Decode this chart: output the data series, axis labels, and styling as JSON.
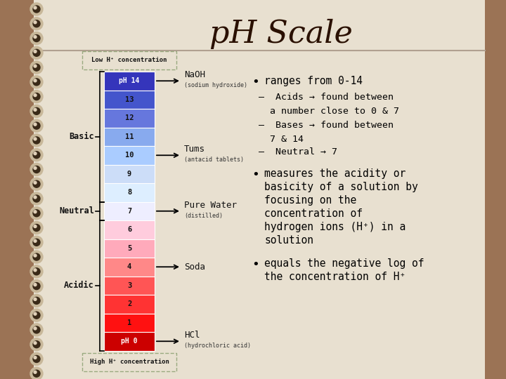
{
  "title": "pH Scale",
  "bg_color": "#e8e0d0",
  "spiral_bg": "#9b7355",
  "title_color": "#2a1000",
  "ph_levels": [
    14,
    13,
    12,
    11,
    10,
    9,
    8,
    7,
    6,
    5,
    4,
    3,
    2,
    1,
    0
  ],
  "ph_colors": [
    "#3535bb",
    "#4455cc",
    "#6677dd",
    "#88aaee",
    "#aaccff",
    "#ccddf8",
    "#ddeeff",
    "#eeeeff",
    "#ffccdd",
    "#ffaabb",
    "#ff8888",
    "#ff5555",
    "#ff3333",
    "#ff1111",
    "#cc0000"
  ],
  "annotations": [
    {
      "ph": 14,
      "label": "NaOH",
      "sublabel": "(sodium hydroxide)"
    },
    {
      "ph": 10,
      "label": "Tums",
      "sublabel": "(antacid tablets)"
    },
    {
      "ph": 7,
      "label": "Pure Water",
      "sublabel": "(distilled)"
    },
    {
      "ph": 4,
      "label": "Soda",
      "sublabel": ""
    },
    {
      "ph": 0,
      "label": "HCl",
      "sublabel": "(hydrochloric acid)"
    }
  ],
  "top_label": "Low H⁺ concentration",
  "bottom_label": "High H⁺ concentration",
  "basic_label": "Basic",
  "neutral_label": "Neutral",
  "acidic_label": "Acidic",
  "spiral_color": "#7a5c3a",
  "line_color": "#b0a090"
}
